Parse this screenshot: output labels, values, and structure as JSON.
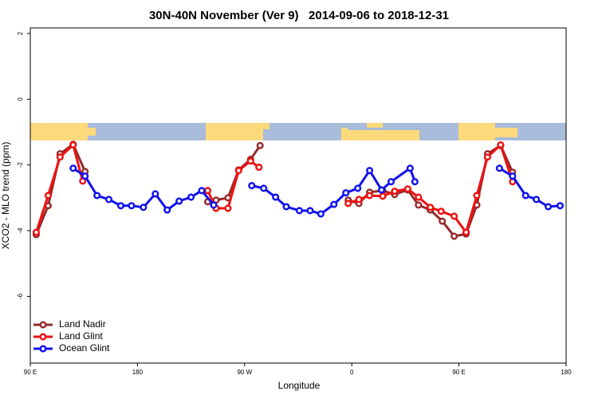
{
  "chart_data": {
    "type": "line",
    "title": "30N-40N November (Ver 9)   2014-09-06 to 2018-12-31",
    "x_label": "Longitude",
    "y_label": "XCO2 - MLO trend (ppm)",
    "xlim": [
      90,
      540
    ],
    "ylim": [
      -8.03,
      2.17
    ],
    "xticks": [
      {
        "value": 90,
        "label": "90 E"
      },
      180,
      {
        "value": 270,
        "label": "90 W"
      },
      {
        "value": 360,
        "label": "0"
      },
      {
        "value": 450,
        "label": "90 E"
      },
      {
        "value": 540,
        "label": "180"
      }
    ],
    "yticks": [
      2,
      0,
      -2,
      -4,
      -6
    ],
    "legend": "bottom-left",
    "series": [
      {
        "name": "Land Nadir",
        "color": "#962b2b",
        "x": [
          95,
          105,
          115,
          126,
          136,
          null,
          239,
          246,
          256,
          265,
          275,
          283,
          null,
          357,
          366,
          375,
          386,
          396,
          407,
          416,
          426,
          436,
          446,
          456,
          465,
          474,
          485,
          495
        ],
        "values": [
          -4.12,
          -3.24,
          -1.66,
          -1.37,
          -2.2,
          null,
          -3.12,
          -3.07,
          -3.0,
          -2.15,
          -1.83,
          -1.41,
          null,
          -3.07,
          -3.17,
          -2.83,
          -2.78,
          -2.9,
          -2.76,
          -3.22,
          -3.37,
          -3.71,
          -4.17,
          -4.1,
          -3.22,
          -1.66,
          -1.41,
          -2.22
        ]
      },
      {
        "name": "Land Glint",
        "color": "#ee1111",
        "x": [
          95,
          105,
          115,
          126,
          134,
          null,
          239,
          246,
          256,
          265,
          275,
          282,
          null,
          357,
          366,
          375,
          386,
          396,
          407,
          416,
          426,
          435,
          446,
          456,
          465,
          474,
          485,
          495
        ],
        "values": [
          -4.05,
          -2.93,
          -1.76,
          -1.39,
          -2.49,
          null,
          -2.78,
          -3.32,
          -3.32,
          -2.17,
          -1.88,
          -2.07,
          null,
          -3.17,
          -3.05,
          -2.93,
          -2.95,
          -2.8,
          -2.73,
          -2.98,
          -3.29,
          -3.41,
          -3.56,
          -4.05,
          -2.93,
          -1.76,
          -1.39,
          -2.51
        ]
      },
      {
        "name": "Ocean Glint",
        "color": "#1111ee",
        "x": [
          126,
          136,
          146,
          156,
          166,
          175,
          185,
          195,
          205,
          215,
          225,
          234,
          244,
          null,
          276,
          286,
          296,
          305,
          316,
          325,
          334,
          345,
          355,
          365,
          375,
          385,
          393,
          409,
          413,
          null,
          484,
          495,
          506,
          515,
          525,
          535
        ],
        "values": [
          -2.1,
          -2.34,
          -2.93,
          -3.05,
          -3.24,
          -3.24,
          -3.29,
          -2.88,
          -3.37,
          -3.1,
          -2.98,
          -2.78,
          -3.22,
          null,
          -2.63,
          -2.71,
          -2.98,
          -3.27,
          -3.39,
          -3.39,
          -3.49,
          -3.2,
          -2.85,
          -2.71,
          -2.17,
          -2.76,
          -2.51,
          -2.1,
          -2.51,
          null,
          -2.1,
          -2.34,
          -2.93,
          -3.05,
          -3.27,
          -3.24
        ]
      }
    ]
  }
}
